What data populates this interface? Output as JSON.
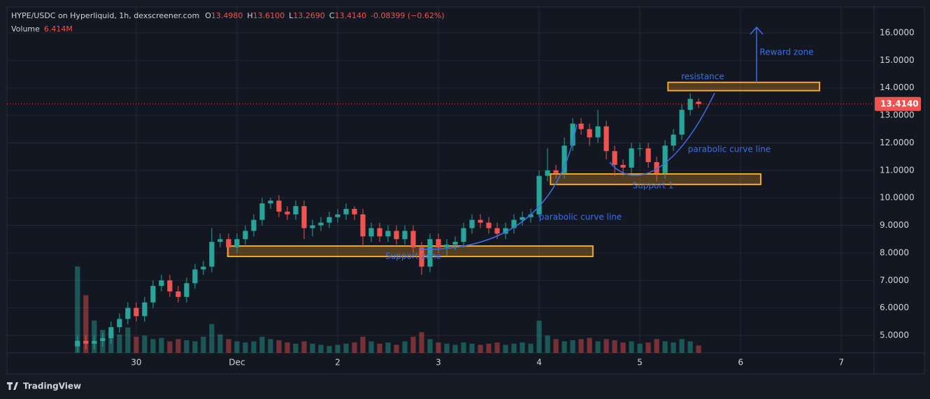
{
  "header": {
    "symbol": "HYPE/USDC on Hyperliquid, 1h, dexscreener.com",
    "o_label": "O",
    "open": "13.4980",
    "h_label": "H",
    "high": "13.6100",
    "l_label": "L",
    "low": "13.2690",
    "c_label": "C",
    "close": "13.4140",
    "change": "-0.08399 (−0.62%)",
    "volume_label": "Volume",
    "volume": "6.414M"
  },
  "footer": {
    "brand": "TradingView"
  },
  "chart_data": {
    "type": "candlestick",
    "x": [
      -14,
      -12,
      -10,
      -8,
      -6,
      -4,
      -2,
      0,
      2,
      4,
      6,
      8,
      10,
      12,
      14,
      16,
      18,
      20,
      22,
      24,
      26,
      28,
      30,
      32,
      34,
      36,
      38,
      40,
      42,
      44,
      46,
      48,
      50,
      52,
      54,
      56,
      58,
      60,
      62,
      64,
      66,
      68,
      70,
      72,
      74,
      76,
      78,
      80,
      82,
      84,
      86,
      88,
      90,
      92,
      94,
      96,
      98,
      100,
      102,
      104,
      106,
      108,
      110,
      112,
      114,
      116,
      118,
      120,
      122,
      124,
      126,
      128,
      130,
      132,
      134
    ],
    "open": [
      4.6,
      4.8,
      4.7,
      4.8,
      4.9,
      5.3,
      5.6,
      6.0,
      5.7,
      6.2,
      6.8,
      7.0,
      6.6,
      6.4,
      6.9,
      7.4,
      7.5,
      8.4,
      8.5,
      8.2,
      8.5,
      8.8,
      9.2,
      9.8,
      9.9,
      9.5,
      9.4,
      9.7,
      8.9,
      9.0,
      9.1,
      9.3,
      9.4,
      9.6,
      9.4,
      8.6,
      8.9,
      8.6,
      8.8,
      8.5,
      8.8,
      8.2,
      7.5,
      8.5,
      8.2,
      8.3,
      8.4,
      8.9,
      9.2,
      9.1,
      8.9,
      8.7,
      8.9,
      9.2,
      9.3,
      9.4,
      10.8,
      11.0,
      10.9,
      11.9,
      12.7,
      12.5,
      12.2,
      12.6,
      11.7,
      11.2,
      11.1,
      11.8,
      11.8,
      11.3,
      10.9,
      11.9,
      12.3,
      13.2,
      13.498
    ],
    "high": [
      5.0,
      5.0,
      5.0,
      5.1,
      5.5,
      5.8,
      6.2,
      6.2,
      6.4,
      7.0,
      7.2,
      7.2,
      6.8,
      7.1,
      7.6,
      7.7,
      8.9,
      8.7,
      8.7,
      8.7,
      9.0,
      9.4,
      10.0,
      10.0,
      10.1,
      9.7,
      9.9,
      9.9,
      9.2,
      9.3,
      9.5,
      9.6,
      9.8,
      9.7,
      9.6,
      9.1,
      9.1,
      9.0,
      9.0,
      9.0,
      9.0,
      8.4,
      8.7,
      8.7,
      8.5,
      8.6,
      9.1,
      9.4,
      9.4,
      9.3,
      9.1,
      9.1,
      9.4,
      9.5,
      9.6,
      11.0,
      11.8,
      11.2,
      12.2,
      12.9,
      12.9,
      12.7,
      13.2,
      12.8,
      11.9,
      11.4,
      12.0,
      12.0,
      12.0,
      11.5,
      12.1,
      12.5,
      13.4,
      13.8,
      13.61
    ],
    "low": [
      4.4,
      4.5,
      4.5,
      4.6,
      4.7,
      5.1,
      5.4,
      5.5,
      5.5,
      6.0,
      6.6,
      6.4,
      6.2,
      6.2,
      6.7,
      7.2,
      7.3,
      8.2,
      7.9,
      8.0,
      8.3,
      8.6,
      9.0,
      9.6,
      9.3,
      9.2,
      9.2,
      8.5,
      8.6,
      8.8,
      8.9,
      9.1,
      9.2,
      9.2,
      8.2,
      8.4,
      8.4,
      8.4,
      8.3,
      8.3,
      8.0,
      7.2,
      7.3,
      8.0,
      7.9,
      8.1,
      8.2,
      8.7,
      8.9,
      8.7,
      8.5,
      8.5,
      8.7,
      9.0,
      9.1,
      9.3,
      10.6,
      10.7,
      10.7,
      11.7,
      12.3,
      11.9,
      12.0,
      11.4,
      10.8,
      10.8,
      10.9,
      11.5,
      11.1,
      10.6,
      10.7,
      11.7,
      12.1,
      13.0,
      13.269
    ],
    "close": [
      4.8,
      4.7,
      4.8,
      4.9,
      5.3,
      5.6,
      6.0,
      5.7,
      6.2,
      6.8,
      7.0,
      6.6,
      6.4,
      6.9,
      7.4,
      7.5,
      8.4,
      8.5,
      8.2,
      8.5,
      8.8,
      9.2,
      9.8,
      9.9,
      9.5,
      9.4,
      9.7,
      8.9,
      9.0,
      9.1,
      9.3,
      9.4,
      9.6,
      9.4,
      8.6,
      8.9,
      8.6,
      8.8,
      8.5,
      8.8,
      8.2,
      7.5,
      8.5,
      8.2,
      8.3,
      8.4,
      8.9,
      9.2,
      9.1,
      8.9,
      8.7,
      8.9,
      9.2,
      9.3,
      9.4,
      10.8,
      11.0,
      10.9,
      11.9,
      12.7,
      12.5,
      12.2,
      12.6,
      11.7,
      11.2,
      11.1,
      11.8,
      11.8,
      11.3,
      10.9,
      11.9,
      12.3,
      13.2,
      13.6,
      13.414
    ],
    "volume": [
      75,
      50,
      28,
      20,
      18,
      16,
      22,
      14,
      15,
      12,
      13,
      10,
      12,
      11,
      10,
      14,
      25,
      16,
      12,
      10,
      9,
      10,
      14,
      12,
      11,
      9,
      8,
      10,
      8,
      7,
      6,
      7,
      8,
      9,
      14,
      10,
      8,
      9,
      7,
      10,
      14,
      18,
      12,
      9,
      8,
      7,
      9,
      8,
      7,
      8,
      9,
      7,
      8,
      9,
      8,
      28,
      15,
      12,
      10,
      11,
      12,
      13,
      10,
      12,
      11,
      9,
      10,
      8,
      9,
      12,
      10,
      9,
      12,
      10,
      6.414
    ],
    "up_color": "#26a69a",
    "down_color": "#ef5350",
    "xlim": [
      -30.8,
      175.8
    ],
    "xticks": [
      {
        "value": 0,
        "label": "30"
      },
      {
        "value": 24,
        "label": "Dec"
      },
      {
        "value": 48,
        "label": "2"
      },
      {
        "value": 72,
        "label": "3"
      },
      {
        "value": 96,
        "label": "4"
      },
      {
        "value": 120,
        "label": "5"
      },
      {
        "value": 144,
        "label": "6"
      },
      {
        "value": 168,
        "label": "7"
      }
    ],
    "ylim": [
      4.365,
      16.94
    ],
    "yticks": [
      {
        "value": 5,
        "label": "5.0000"
      },
      {
        "value": 6,
        "label": "6.0000"
      },
      {
        "value": 7,
        "label": "7.0000"
      },
      {
        "value": 8,
        "label": "8.0000"
      },
      {
        "value": 9,
        "label": "9.0000"
      },
      {
        "value": 10,
        "label": "10.0000"
      },
      {
        "value": 11,
        "label": "11.0000"
      },
      {
        "value": 12,
        "label": "12.0000"
      },
      {
        "value": 13,
        "label": "13.0000"
      },
      {
        "value": 14,
        "label": "14.0000"
      },
      {
        "value": 15,
        "label": "15.0000"
      },
      {
        "value": 16,
        "label": "16.0000"
      }
    ],
    "vlim": [
      0,
      300
    ],
    "grid": true,
    "zones": [
      {
        "xlim": [
          21.8,
          108.8
        ],
        "ylim": [
          7.87,
          8.25
        ]
      },
      {
        "xlim": [
          98.7,
          148.8
        ],
        "ylim": [
          10.49,
          10.87
        ]
      },
      {
        "xlim": [
          126.7,
          162.8
        ],
        "ylim": [
          13.9,
          14.2
        ]
      }
    ],
    "annotations": {
      "resistance": "resistance",
      "reward": "Reward zone",
      "curve_1": "parabolic curve line",
      "curve_2": "parabolic curve line",
      "support_1": "Support 1",
      "support_zone": "Support zone"
    }
  }
}
